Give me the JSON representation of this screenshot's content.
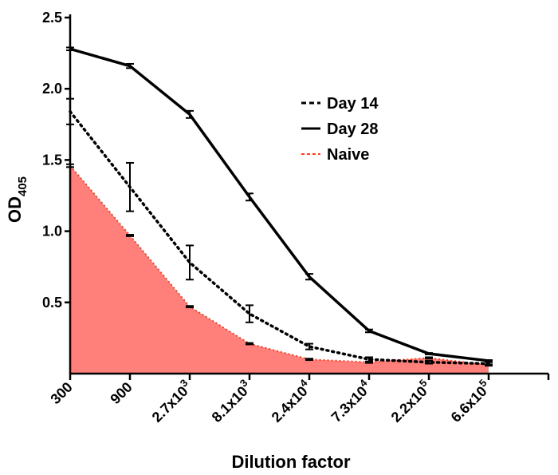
{
  "chart_data": {
    "type": "line",
    "title": "",
    "xlabel": "Dilution factor",
    "ylabel_main": "OD",
    "ylabel_sub": "405",
    "ylim": [
      0,
      2.5
    ],
    "y_ticks": [
      {
        "value": 0.5,
        "label": "0.5"
      },
      {
        "value": 1.0,
        "label": "1.0"
      },
      {
        "value": 1.5,
        "label": "1.5"
      },
      {
        "value": 2.0,
        "label": "2.0"
      },
      {
        "value": 2.5,
        "label": "2.5"
      }
    ],
    "categories": [
      {
        "base": "300",
        "exp": ""
      },
      {
        "base": "900",
        "exp": ""
      },
      {
        "base": "2.7x10",
        "exp": "3"
      },
      {
        "base": "8.1x10",
        "exp": "3"
      },
      {
        "base": "2.4x10",
        "exp": "4"
      },
      {
        "base": "7.3x10",
        "exp": "4"
      },
      {
        "base": "2.2x10",
        "exp": "5"
      },
      {
        "base": "6.6x10",
        "exp": "5"
      }
    ],
    "series": [
      {
        "name": "Naive",
        "style": "dotted-filled",
        "color": "#ff3b1f",
        "fill": "#ff7f7a",
        "values": [
          1.46,
          0.97,
          0.47,
          0.21,
          0.1,
          0.08,
          0.11,
          0.06
        ],
        "errors": [
          0.01,
          0.005,
          0.005,
          0.005,
          0.005,
          0.005,
          0.005,
          0.005
        ]
      },
      {
        "name": "Day 14",
        "style": "dotted",
        "color": "#000000",
        "values": [
          1.84,
          1.31,
          0.78,
          0.42,
          0.19,
          0.1,
          0.08,
          0.07
        ],
        "errors": [
          0.09,
          0.17,
          0.12,
          0.06,
          0.02,
          0.015,
          0.01,
          0.01
        ]
      },
      {
        "name": "Day 28",
        "style": "solid",
        "color": "#000000",
        "values": [
          2.28,
          2.16,
          1.82,
          1.24,
          0.68,
          0.3,
          0.14,
          0.09
        ],
        "errors": [
          0.01,
          0.015,
          0.025,
          0.025,
          0.02,
          0.01,
          0.005,
          0.005
        ]
      }
    ],
    "legend": {
      "position": "top-right",
      "entries": [
        {
          "label": "Day 14",
          "style": "dashed",
          "color": "#000000"
        },
        {
          "label": "Day 28",
          "style": "solid",
          "color": "#000000"
        },
        {
          "label": "Naive",
          "style": "dashed",
          "color": "#ff3b1f"
        }
      ]
    }
  }
}
